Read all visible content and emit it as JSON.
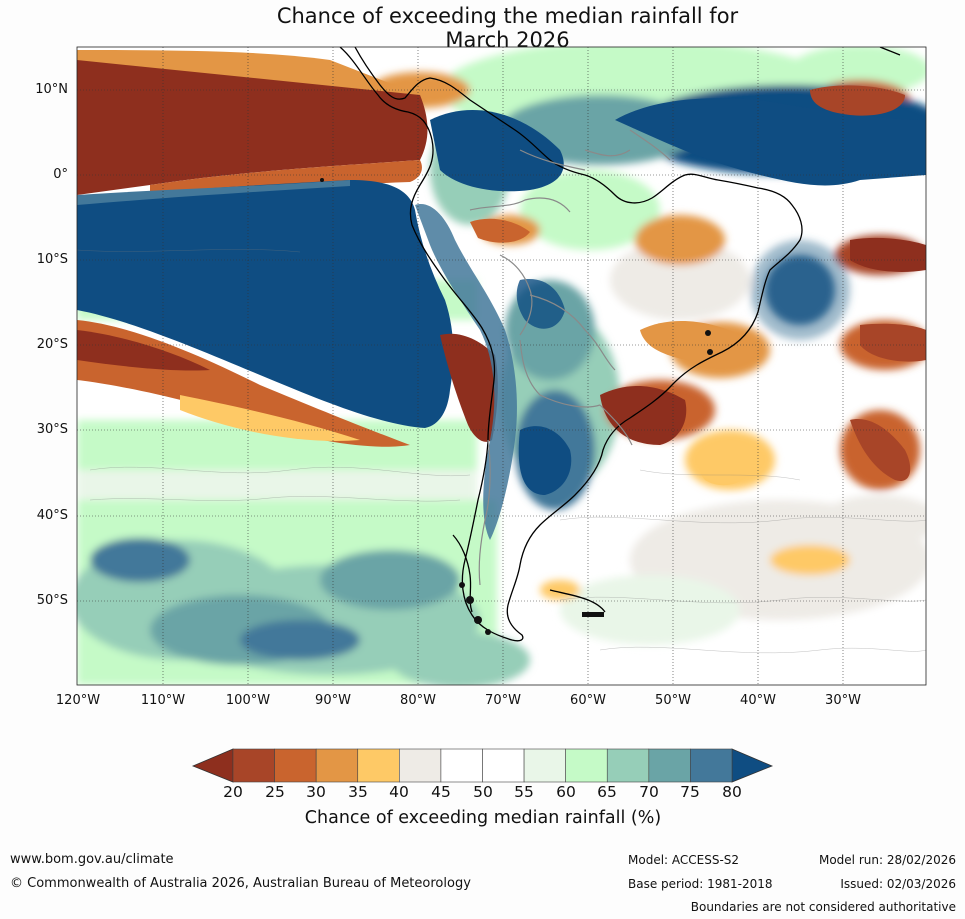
{
  "title": {
    "line1": "Chance of exceeding the median rainfall for",
    "line2": "March 2026"
  },
  "map": {
    "lat_labels": [
      "10°N",
      "0°",
      "10°S",
      "20°S",
      "30°S",
      "40°S",
      "50°S"
    ],
    "lon_labels": [
      "120°W",
      "110°W",
      "100°W",
      "90°W",
      "80°W",
      "70°W",
      "60°W",
      "50°W",
      "40°W",
      "30°W"
    ]
  },
  "colorbar": {
    "ticks": [
      "20",
      "25",
      "30",
      "35",
      "40",
      "45",
      "50",
      "55",
      "60",
      "65",
      "70",
      "75",
      "80"
    ],
    "label": "Chance of exceeding median rainfall (%)",
    "low_extend_color": "#8e2f1e",
    "high_extend_color": "#0f4d82",
    "colors": [
      "#a84528",
      "#c9642e",
      "#e39645",
      "#fec966",
      "#eeebe6",
      "#ffffff",
      "#ffffff",
      "#e9f6e8",
      "#c5fac7",
      "#96ceb8",
      "#6aa4a6",
      "#43789a"
    ]
  },
  "footer": {
    "website": "www.bom.gov.au/climate",
    "copyright": "© Commonwealth of Australia 2026, Australian Bureau of Meteorology",
    "model": "Model: ACCESS-S2",
    "base_period": "Base period: 1981-2018",
    "model_run": "Model run: 28/02/2026",
    "issued": "Issued: 02/03/2026",
    "disclaimer": "Boundaries are not considered authoritative"
  }
}
